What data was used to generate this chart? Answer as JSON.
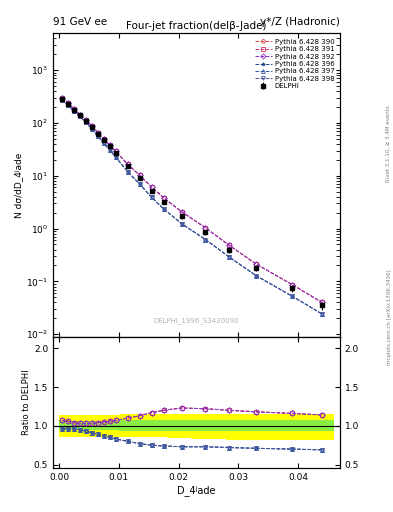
{
  "title_left": "91 GeV ee",
  "title_right": "γ*/Z (Hadronic)",
  "plot_title": "Four-jet fraction(delβ-Jade)",
  "ylabel_main": "N dσ/dD_4ʲade",
  "ylabel_ratio": "Ratio to DELPHI",
  "xlabel": "D_4ʲade",
  "right_label": "Rivet 3.1.10, ≥ 3.4M events",
  "right_label2": "mcplots.cern.ch [arXiv:1306.3436]",
  "watermark": "DELPHI_1996_S3430090",
  "x_data": [
    0.0005,
    0.0015,
    0.0025,
    0.0035,
    0.0045,
    0.0055,
    0.0065,
    0.0075,
    0.0085,
    0.0095,
    0.0115,
    0.0135,
    0.0155,
    0.0175,
    0.0205,
    0.0245,
    0.0285,
    0.033,
    0.039,
    0.044
  ],
  "delphi_y": [
    280,
    230,
    175,
    140,
    110,
    85,
    63,
    47,
    36,
    27,
    15,
    9.0,
    5.2,
    3.2,
    1.7,
    0.85,
    0.4,
    0.18,
    0.075,
    0.035
  ],
  "delphi_yerr": [
    12,
    10,
    8,
    7,
    5,
    4,
    3,
    2.5,
    2,
    1.5,
    0.9,
    0.6,
    0.4,
    0.28,
    0.16,
    0.09,
    0.05,
    0.025,
    0.012,
    0.006
  ],
  "series": [
    {
      "label": "Pythia 6.428 390",
      "color": "#dd4444",
      "marker": "o",
      "linestyle": "--",
      "ratio_group": "upper"
    },
    {
      "label": "Pythia 6.428 391",
      "color": "#cc3366",
      "marker": "s",
      "linestyle": "--",
      "ratio_group": "upper"
    },
    {
      "label": "Pythia 6.428 392",
      "color": "#8833cc",
      "marker": "D",
      "linestyle": "--",
      "ratio_group": "upper"
    },
    {
      "label": "Pythia 6.428 396",
      "color": "#224488",
      "marker": "*",
      "linestyle": "--",
      "ratio_group": "lower"
    },
    {
      "label": "Pythia 6.428 397",
      "color": "#3355aa",
      "marker": "^",
      "linestyle": "--",
      "ratio_group": "lower"
    },
    {
      "label": "Pythia 6.428 398",
      "color": "#445599",
      "marker": "v",
      "linestyle": "--",
      "ratio_group": "lower"
    }
  ],
  "upper_ratio": [
    1.07,
    1.06,
    1.04,
    1.03,
    1.03,
    1.03,
    1.04,
    1.05,
    1.06,
    1.07,
    1.1,
    1.13,
    1.17,
    1.2,
    1.23,
    1.22,
    1.2,
    1.18,
    1.16,
    1.14
  ],
  "lower_ratio": [
    0.96,
    0.96,
    0.96,
    0.95,
    0.93,
    0.91,
    0.89,
    0.87,
    0.85,
    0.83,
    0.8,
    0.77,
    0.75,
    0.74,
    0.73,
    0.73,
    0.72,
    0.71,
    0.7,
    0.69
  ],
  "band_x_edges": [
    0.0,
    0.002,
    0.004,
    0.006,
    0.008,
    0.01,
    0.014,
    0.018,
    0.022,
    0.028,
    0.034,
    0.046
  ],
  "band_yellow_lo": [
    0.86,
    0.86,
    0.86,
    0.86,
    0.86,
    0.85,
    0.85,
    0.84,
    0.83,
    0.82,
    0.82
  ],
  "band_yellow_hi": [
    1.14,
    1.14,
    1.14,
    1.14,
    1.14,
    1.15,
    1.15,
    1.15,
    1.15,
    1.15,
    1.15
  ],
  "band_green_lo": [
    0.94,
    0.94,
    0.94,
    0.94,
    0.94,
    0.93,
    0.93,
    0.93,
    0.93,
    0.93,
    0.93
  ],
  "band_green_hi": [
    1.06,
    1.06,
    1.06,
    1.06,
    1.06,
    1.07,
    1.07,
    1.07,
    1.07,
    1.07,
    1.07
  ],
  "xlim": [
    -0.001,
    0.047
  ],
  "ylim_main": [
    0.009,
    5000
  ],
  "ylim_ratio": [
    0.45,
    2.15
  ],
  "ratio_yticks": [
    0.5,
    1.0,
    1.5,
    2.0
  ]
}
